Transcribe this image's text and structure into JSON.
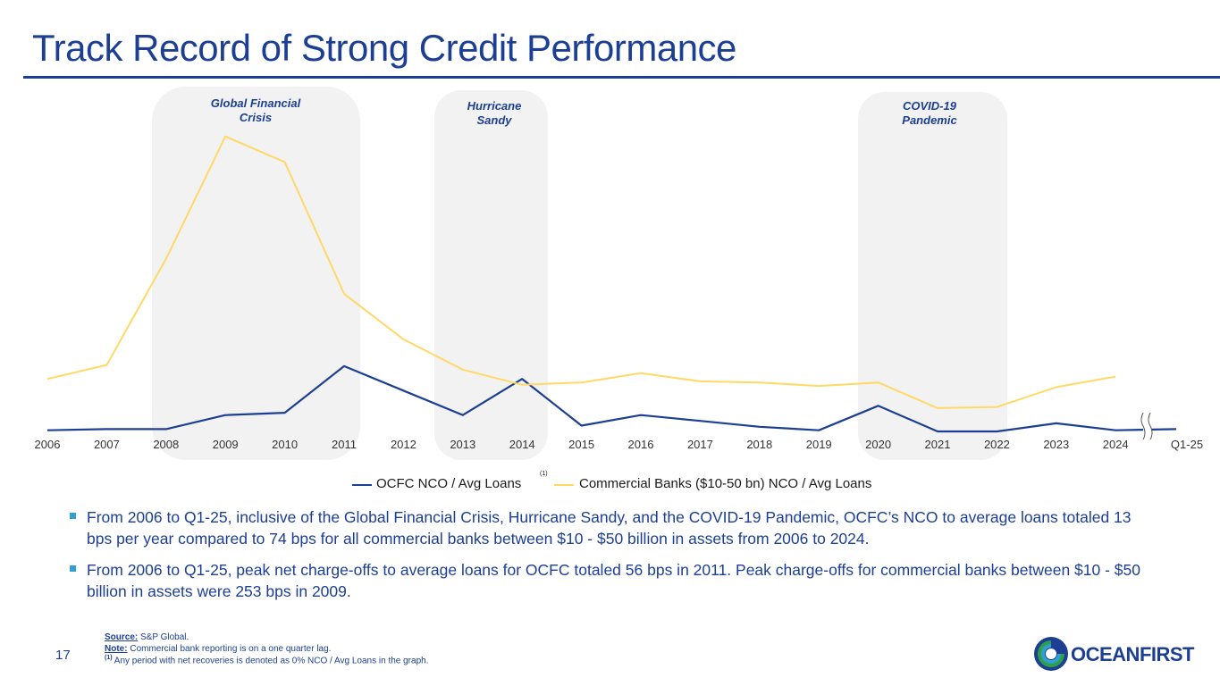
{
  "slide": {
    "title": "Track Record of Strong Credit Performance",
    "page_number": "17"
  },
  "chart_data": {
    "type": "line",
    "categories": [
      "2006",
      "2007",
      "2008",
      "2009",
      "2010",
      "2011",
      "2012",
      "2013",
      "2014",
      "2015",
      "2016",
      "2017",
      "2018",
      "2019",
      "2020",
      "2021",
      "2022",
      "2023",
      "2024",
      "Q1-25"
    ],
    "series": [
      {
        "name": "OCFC NCO / Avg Loans",
        "superscript": "(1)",
        "color": "#1c3f94",
        "values": [
          1,
          2,
          2,
          14,
          16,
          56,
          35,
          14,
          45,
          5,
          14,
          9,
          4,
          1,
          22,
          0,
          0,
          7,
          1,
          2
        ]
      },
      {
        "name": "Commercial Banks ($10-50 bn) NCO / Avg Loans",
        "color": "#ffd966",
        "values": [
          45,
          57,
          148,
          253,
          231,
          118,
          79,
          53,
          40,
          42,
          50,
          43,
          42,
          39,
          42,
          20,
          21,
          38,
          47,
          null
        ]
      }
    ],
    "ylim": [
      0,
      265
    ],
    "shaded_periods": [
      {
        "label": "Global Financial Crisis",
        "label_lines": [
          "Global Financial",
          "Crisis"
        ]
      },
      {
        "label": "Hurricane Sandy",
        "label_lines": [
          "Hurricane",
          "Sandy"
        ]
      },
      {
        "label": "COVID-19 Pandemic",
        "label_lines": [
          "COVID-19",
          "Pandemic"
        ]
      }
    ],
    "axis_break": true,
    "grid": false,
    "legend_position": "bottom"
  },
  "bullets": [
    "From 2006 to Q1-25, inclusive of the Global Financial Crisis, Hurricane Sandy, and the COVID-19 Pandemic, OCFC’s NCO to average loans totaled 13 bps per year compared to 74 bps for all commercial banks between $10 - $50 billion in assets from 2006 to 2024.",
    "From 2006 to Q1-25, peak net charge-offs to average loans for OCFC totaled 56 bps in 2011. Peak charge-offs for commercial banks between $10 - $50 billion in assets were 253 bps in 2009."
  ],
  "footnotes": {
    "source_label": "Source:",
    "source_text": " S&P Global.",
    "note_label": "Note:",
    "note_text": " Commercial bank reporting is on a one quarter lag.",
    "fn_marker": "(1)",
    "fn_text": " Any period with net recoveries is denoted as 0% NCO / Avg Loans in the graph."
  },
  "logo": {
    "text": "OCEANFIRST",
    "alt": "OceanFirst"
  },
  "colors": {
    "primary": "#1c3f94",
    "accent": "#2ea0d6",
    "gold": "#ffd966",
    "shade": "#f2f2f2"
  }
}
